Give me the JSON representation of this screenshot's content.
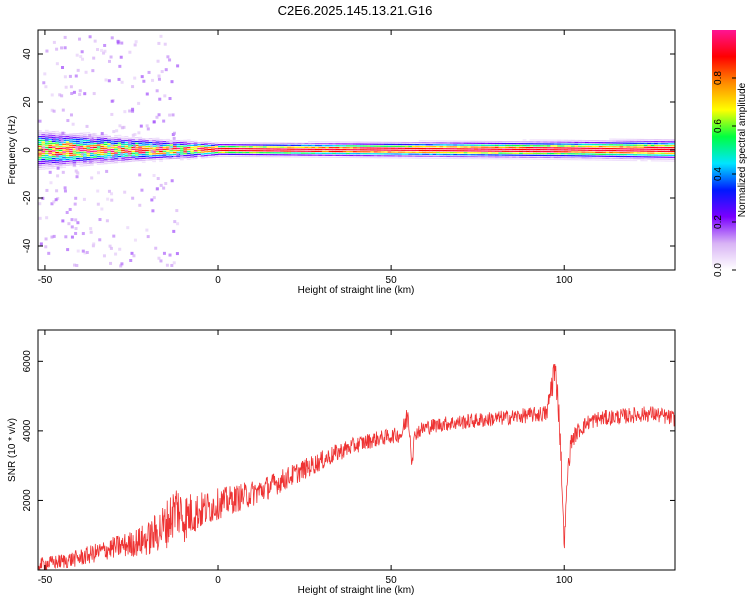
{
  "figure": {
    "title": "C2E6.2025.145.13.21.G16"
  },
  "chart_data": [
    {
      "type": "heatmap",
      "xlabel": "Height of straight line (km)",
      "ylabel": "Frequency (Hz)",
      "xlim": [
        -52,
        132
      ],
      "ylim": [
        -50,
        50
      ],
      "xticks": [
        -50,
        0,
        50,
        100
      ],
      "yticks": [
        -40,
        -20,
        0,
        20,
        40
      ],
      "grid": false,
      "colorbar": {
        "label": "Normalized spectral amplitude",
        "range": [
          0,
          1
        ],
        "ticks": [
          "0.0",
          "0.2",
          "0.4",
          "0.6",
          "0.8"
        ],
        "colors": [
          "#ffffff",
          "#d8b3f5",
          "#7a00ff",
          "#0018ff",
          "#00e5ff",
          "#00ff40",
          "#ffff00",
          "#ff8c00",
          "#ff0000",
          "#ff1493"
        ]
      },
      "band": {
        "center_hz": 0,
        "half_width_hz": [
          {
            "x": -52,
            "w": 7
          },
          {
            "x": -40,
            "w": 6
          },
          {
            "x": -25,
            "w": 4.5
          },
          {
            "x": -10,
            "w": 3.5
          },
          {
            "x": 0,
            "w": 2.5
          },
          {
            "x": 50,
            "w": 3
          },
          {
            "x": 100,
            "w": 3.5
          },
          {
            "x": 132,
            "w": 4
          }
        ]
      }
    },
    {
      "type": "line",
      "xlabel": "Height of straight line (km)",
      "ylabel": "SNR (10 * v/v)",
      "xlim": [
        -52,
        132
      ],
      "ylim": [
        0,
        6900
      ],
      "xticks": [
        -50,
        0,
        50,
        100
      ],
      "yticks": [
        2000,
        4000,
        6000
      ],
      "grid": false,
      "series": [
        {
          "color": "#ee3333",
          "x": [
            -52,
            -45,
            -40,
            -35,
            -30,
            -25,
            -20,
            -15,
            -12,
            -10,
            -8,
            -5,
            0,
            5,
            10,
            15,
            20,
            25,
            30,
            35,
            40,
            45,
            50,
            53,
            55,
            56,
            57,
            60,
            65,
            70,
            75,
            80,
            85,
            90,
            95,
            97,
            98,
            99,
            100,
            101,
            102,
            104,
            107,
            110,
            115,
            120,
            125,
            132
          ],
          "y": [
            150,
            250,
            350,
            500,
            650,
            750,
            900,
            1300,
            1800,
            1500,
            1600,
            1700,
            1900,
            2050,
            2200,
            2400,
            2650,
            2900,
            3150,
            3400,
            3600,
            3750,
            3850,
            3900,
            4500,
            3200,
            3950,
            4100,
            4200,
            4250,
            4300,
            4350,
            4400,
            4450,
            4500,
            5700,
            5300,
            3500,
            700,
            2800,
            3700,
            4000,
            4250,
            4350,
            4400,
            4450,
            4500,
            4350
          ],
          "noise_amplitude": [
            200,
            220,
            250,
            280,
            320,
            380,
            500,
            700,
            800,
            750,
            650,
            550,
            450,
            400,
            380,
            350,
            320,
            300,
            280,
            260,
            240,
            230,
            220,
            220,
            400,
            300,
            230,
            220,
            220,
            220,
            220,
            220,
            220,
            220,
            250,
            600,
            500,
            400,
            200,
            300,
            250,
            240,
            230,
            230,
            230,
            230,
            230,
            230
          ]
        }
      ]
    }
  ]
}
